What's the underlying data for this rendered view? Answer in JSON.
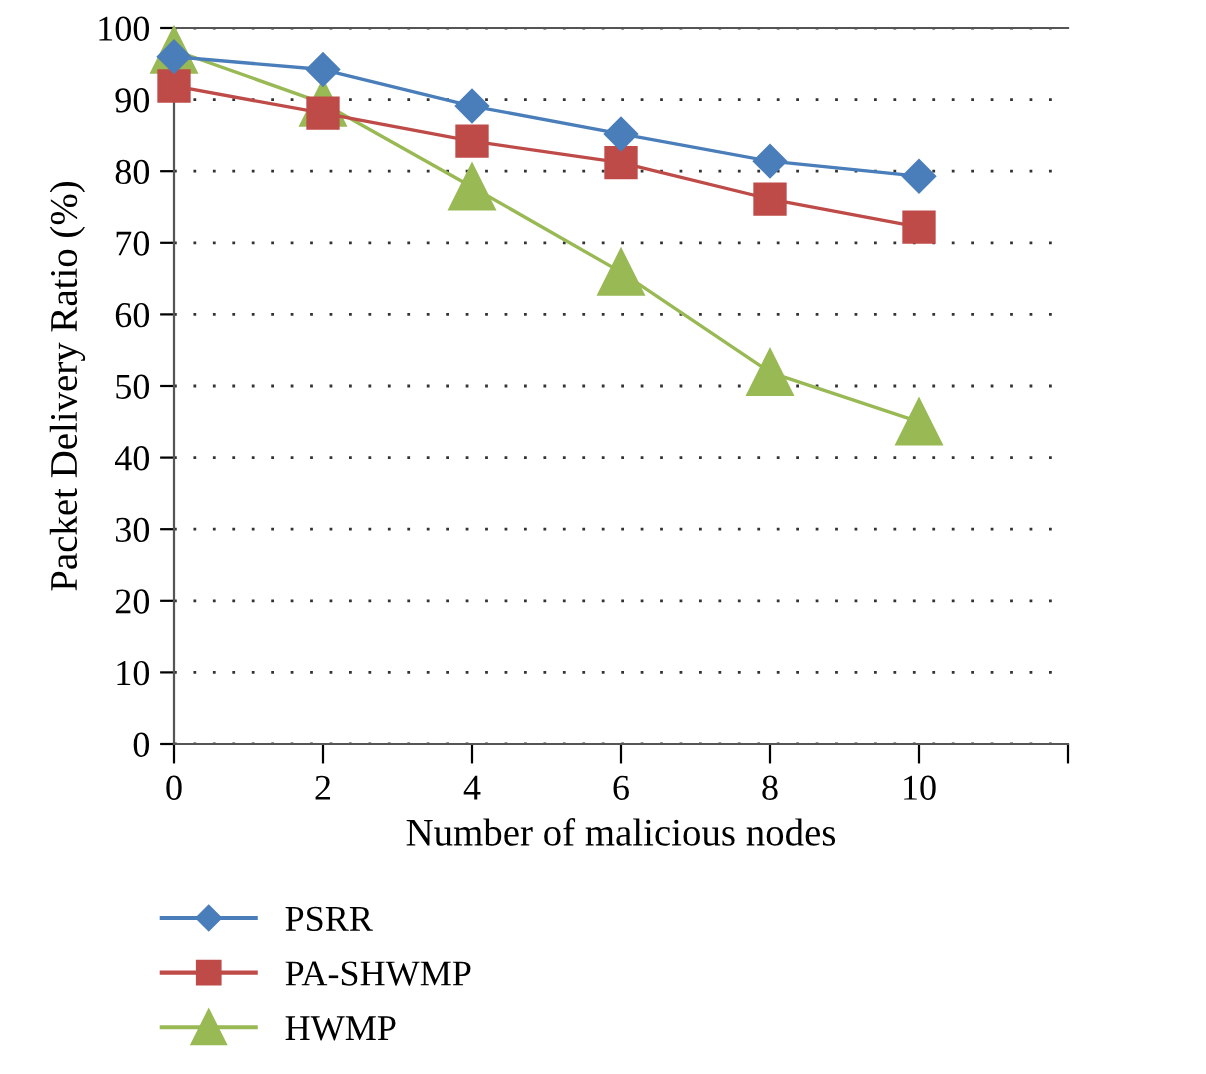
{
  "chart_data": {
    "type": "line",
    "xlabel": "Number of malicious nodes",
    "ylabel": "Packet Delivery Ratio (%)",
    "x": [
      0,
      2,
      4,
      6,
      8,
      10
    ],
    "series": [
      {
        "name": "PSRR",
        "color": "#4a7ebb",
        "marker": "diamond",
        "values": [
          96,
          94.2,
          89.1,
          85.2,
          81.4,
          79.3
        ]
      },
      {
        "name": "PA-SHWMP",
        "color": "#be4b48",
        "marker": "square",
        "values": [
          91.9,
          88.1,
          84.2,
          81.2,
          76.1,
          72.2
        ]
      },
      {
        "name": "HWMP",
        "color": "#98b954",
        "marker": "triangle",
        "values": [
          96.9,
          89.5,
          77.8,
          65.9,
          51.9,
          45
        ]
      }
    ],
    "xlim": [
      0,
      12
    ],
    "xticks": [
      0,
      2,
      4,
      6,
      8,
      10,
      {
        "value": 12,
        "label": null
      }
    ],
    "ylim": [
      0,
      100
    ],
    "yticks": [
      0,
      10,
      20,
      30,
      40,
      50,
      60,
      70,
      80,
      90,
      100
    ],
    "grid": "y",
    "legend": "bottom left",
    "line_style": "solid"
  }
}
